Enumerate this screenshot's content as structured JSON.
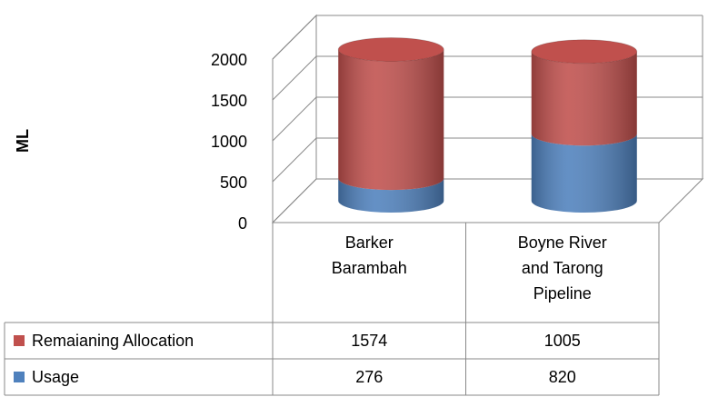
{
  "chart_data": {
    "type": "cylinder-stacked",
    "y_label": "ML",
    "categories": [
      "Barker Barambah",
      "Boyne River and Tarong Pipeline"
    ],
    "series": [
      {
        "name": "Remaianing Allocation",
        "color": "#c0504d",
        "values": [
          1574,
          1005
        ]
      },
      {
        "name": "Usage",
        "color": "#4f81bd",
        "values": [
          276,
          820
        ]
      }
    ],
    "ylim": [
      0,
      2000
    ],
    "yticks": [
      0,
      500,
      1000,
      1500,
      2000
    ],
    "grid": true
  }
}
